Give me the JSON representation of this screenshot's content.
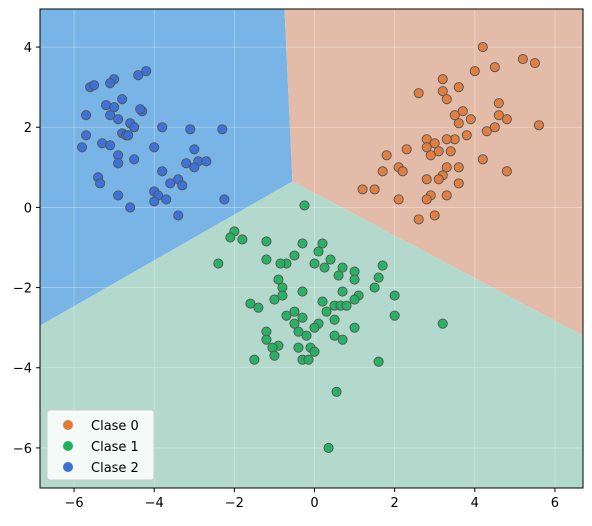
{
  "chart_data": {
    "type": "scatter",
    "title": "",
    "xlabel": "",
    "ylabel": "",
    "xlim": [
      -6.85,
      6.7
    ],
    "ylim": [
      -7.0,
      4.95
    ],
    "xticks": [
      -6,
      -4,
      -2,
      0,
      2,
      4,
      6
    ],
    "yticks": [
      4,
      2,
      0,
      -2,
      -4,
      -6
    ],
    "grid": true,
    "legend_position": "lower-left",
    "decision_regions": {
      "junction": [
        -0.55,
        0.65
      ],
      "boundaries": [
        {
          "between": [
            "Clase 0",
            "Clase 2"
          ],
          "to": [
            -0.75,
            5.0
          ]
        },
        {
          "between": [
            "Clase 1",
            "Clase 2"
          ],
          "to": [
            -6.85,
            -2.95
          ]
        },
        {
          "between": [
            "Clase 0",
            "Clase 1"
          ],
          "to": [
            6.7,
            -3.2
          ]
        }
      ],
      "colors": {
        "Clase 0": "#e3bca9",
        "Clase 1": "#b2d9cb",
        "Clase 2": "#78b4e6"
      }
    },
    "series": [
      {
        "name": "Clase 0",
        "color": "#e07a3a",
        "points": [
          [
            4.2,
            4.0
          ],
          [
            5.2,
            3.7
          ],
          [
            5.5,
            3.6
          ],
          [
            4.0,
            3.4
          ],
          [
            4.5,
            3.5
          ],
          [
            3.2,
            3.2
          ],
          [
            3.6,
            3.0
          ],
          [
            3.2,
            2.9
          ],
          [
            2.6,
            2.85
          ],
          [
            3.3,
            2.7
          ],
          [
            4.6,
            2.6
          ],
          [
            3.5,
            2.3
          ],
          [
            3.7,
            2.4
          ],
          [
            4.8,
            2.2
          ],
          [
            4.6,
            2.3
          ],
          [
            3.9,
            2.2
          ],
          [
            3.6,
            2.1
          ],
          [
            4.5,
            2.0
          ],
          [
            4.3,
            1.9
          ],
          [
            3.8,
            1.8
          ],
          [
            5.6,
            2.05
          ],
          [
            3.5,
            1.7
          ],
          [
            3.3,
            1.7
          ],
          [
            2.8,
            1.7
          ],
          [
            3.0,
            1.6
          ],
          [
            2.8,
            1.5
          ],
          [
            3.4,
            1.4
          ],
          [
            3.1,
            1.4
          ],
          [
            2.3,
            1.45
          ],
          [
            2.9,
            1.3
          ],
          [
            1.8,
            1.3
          ],
          [
            4.2,
            1.2
          ],
          [
            3.3,
            1.0
          ],
          [
            3.6,
            1.0
          ],
          [
            2.1,
            1.0
          ],
          [
            2.2,
            0.9
          ],
          [
            1.7,
            0.9
          ],
          [
            3.2,
            0.8
          ],
          [
            4.8,
            0.9
          ],
          [
            2.8,
            0.7
          ],
          [
            3.1,
            0.7
          ],
          [
            3.6,
            0.6
          ],
          [
            1.5,
            0.45
          ],
          [
            1.2,
            0.45
          ],
          [
            2.9,
            0.3
          ],
          [
            3.3,
            0.3
          ],
          [
            2.1,
            0.2
          ],
          [
            2.8,
            0.2
          ],
          [
            3.0,
            -0.2
          ],
          [
            2.6,
            -0.3
          ]
        ]
      },
      {
        "name": "Clase 1",
        "color": "#22b05e",
        "points": [
          [
            -0.25,
            0.05
          ],
          [
            -2.0,
            -0.6
          ],
          [
            -2.1,
            -0.75
          ],
          [
            -1.8,
            -0.8
          ],
          [
            -1.2,
            -0.85
          ],
          [
            -0.3,
            -0.9
          ],
          [
            0.2,
            -0.9
          ],
          [
            0.1,
            -1.1
          ],
          [
            -0.5,
            -1.2
          ],
          [
            0.4,
            -1.3
          ],
          [
            0.0,
            -1.4
          ],
          [
            -1.2,
            -1.3
          ],
          [
            -0.7,
            -1.4
          ],
          [
            -0.85,
            -1.4
          ],
          [
            -2.4,
            -1.4
          ],
          [
            1.7,
            -1.45
          ],
          [
            0.25,
            -1.5
          ],
          [
            0.7,
            -1.5
          ],
          [
            1.0,
            -1.6
          ],
          [
            0.6,
            -1.7
          ],
          [
            1.6,
            -1.75
          ],
          [
            -0.9,
            -1.8
          ],
          [
            1.0,
            -1.8
          ],
          [
            -0.8,
            -2.0
          ],
          [
            1.5,
            -2.0
          ],
          [
            -0.3,
            -2.1
          ],
          [
            0.7,
            -2.1
          ],
          [
            1.1,
            -2.2
          ],
          [
            2.0,
            -2.2
          ],
          [
            -0.8,
            -2.2
          ],
          [
            -1.0,
            -2.3
          ],
          [
            1.0,
            -2.3
          ],
          [
            0.2,
            -2.35
          ],
          [
            -1.6,
            -2.4
          ],
          [
            -1.4,
            -2.5
          ],
          [
            0.5,
            -2.45
          ],
          [
            0.65,
            -2.45
          ],
          [
            0.8,
            -2.45
          ],
          [
            -0.5,
            -2.6
          ],
          [
            0.3,
            -2.6
          ],
          [
            2.0,
            -2.7
          ],
          [
            -0.7,
            -2.7
          ],
          [
            -0.3,
            -2.75
          ],
          [
            0.5,
            -2.8
          ],
          [
            -0.5,
            -2.9
          ],
          [
            0.1,
            -2.9
          ],
          [
            0.0,
            -3.0
          ],
          [
            1.0,
            -3.0
          ],
          [
            3.2,
            -2.9
          ],
          [
            -1.2,
            -3.1
          ],
          [
            -0.4,
            -3.1
          ],
          [
            0.5,
            -3.2
          ],
          [
            -0.2,
            -3.2
          ],
          [
            0.7,
            -3.3
          ],
          [
            -1.2,
            -3.3
          ],
          [
            -0.9,
            -3.45
          ],
          [
            -1.05,
            -3.5
          ],
          [
            -0.1,
            -3.5
          ],
          [
            -0.4,
            -3.5
          ],
          [
            0.0,
            -3.6
          ],
          [
            -1.0,
            -3.7
          ],
          [
            -1.5,
            -3.8
          ],
          [
            -0.3,
            -3.8
          ],
          [
            -0.15,
            -3.8
          ],
          [
            1.6,
            -3.85
          ],
          [
            0.55,
            -4.6
          ],
          [
            0.35,
            -6.0
          ]
        ]
      },
      {
        "name": "Clase 2",
        "color": "#3a6fd8",
        "points": [
          [
            -4.2,
            3.4
          ],
          [
            -4.4,
            3.3
          ],
          [
            -5.0,
            3.2
          ],
          [
            -5.1,
            3.1
          ],
          [
            -5.6,
            3.0
          ],
          [
            -5.5,
            3.05
          ],
          [
            -4.8,
            2.7
          ],
          [
            -5.2,
            2.55
          ],
          [
            -5.0,
            2.5
          ],
          [
            -4.3,
            2.4
          ],
          [
            -4.35,
            2.45
          ],
          [
            -5.7,
            2.3
          ],
          [
            -5.1,
            2.3
          ],
          [
            -4.6,
            2.1
          ],
          [
            -4.9,
            2.2
          ],
          [
            -4.5,
            2.0
          ],
          [
            -3.8,
            2.0
          ],
          [
            -3.1,
            1.95
          ],
          [
            -2.3,
            1.95
          ],
          [
            -4.8,
            1.85
          ],
          [
            -5.7,
            1.8
          ],
          [
            -4.7,
            1.8
          ],
          [
            -4.65,
            1.8
          ],
          [
            -5.3,
            1.6
          ],
          [
            -5.1,
            1.55
          ],
          [
            -4.0,
            1.5
          ],
          [
            -3.0,
            1.45
          ],
          [
            -5.8,
            1.5
          ],
          [
            -4.9,
            1.3
          ],
          [
            -4.5,
            1.2
          ],
          [
            -2.9,
            1.15
          ],
          [
            -2.7,
            1.15
          ],
          [
            -3.2,
            1.1
          ],
          [
            -4.9,
            1.1
          ],
          [
            -3.0,
            1.0
          ],
          [
            -3.8,
            0.9
          ],
          [
            -5.4,
            0.75
          ],
          [
            -3.4,
            0.7
          ],
          [
            -3.6,
            0.6
          ],
          [
            -5.35,
            0.6
          ],
          [
            -3.3,
            0.55
          ],
          [
            -4.0,
            0.4
          ],
          [
            -4.9,
            0.3
          ],
          [
            -3.9,
            0.3
          ],
          [
            -4.0,
            0.15
          ],
          [
            -2.25,
            0.2
          ],
          [
            -3.7,
            0.2
          ],
          [
            -4.6,
            0.0
          ],
          [
            -3.4,
            -0.2
          ]
        ]
      }
    ],
    "legend": [
      "Clase 0",
      "Clase 1",
      "Clase 2"
    ]
  }
}
